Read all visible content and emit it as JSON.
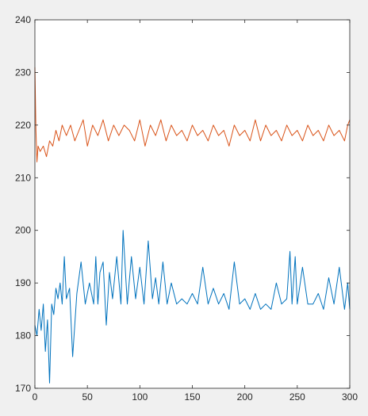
{
  "chart_data": {
    "type": "line",
    "title": "",
    "xlabel": "",
    "ylabel": "",
    "xlim": [
      0,
      300
    ],
    "ylim": [
      170,
      240
    ],
    "x_ticks": [
      0,
      50,
      100,
      150,
      200,
      250,
      300
    ],
    "y_ticks": [
      170,
      180,
      190,
      200,
      210,
      220,
      230,
      240
    ],
    "grid": false,
    "legend": "none",
    "series": [
      {
        "color": "#0072BD",
        "x": [
          0,
          2,
          4,
          6,
          8,
          10,
          12,
          14,
          16,
          18,
          20,
          22,
          24,
          26,
          28,
          30,
          33,
          36,
          40,
          44,
          48,
          52,
          56,
          58,
          60,
          62,
          65,
          68,
          71,
          74,
          78,
          82,
          84,
          88,
          92,
          96,
          100,
          104,
          108,
          112,
          115,
          118,
          122,
          126,
          130,
          135,
          140,
          145,
          150,
          155,
          160,
          165,
          170,
          175,
          180,
          185,
          190,
          195,
          200,
          205,
          210,
          215,
          220,
          225,
          230,
          235,
          240,
          243,
          245,
          248,
          250,
          255,
          260,
          265,
          270,
          275,
          280,
          285,
          290,
          295,
          298,
          300
        ],
        "values": [
          182,
          180,
          185,
          181,
          186,
          177,
          183,
          171,
          186,
          184,
          189,
          187,
          190,
          186,
          195,
          187,
          189,
          176,
          188,
          194,
          186,
          190,
          186,
          195,
          186,
          192,
          194,
          182,
          192,
          187,
          195,
          186,
          200,
          186,
          195,
          187,
          193,
          186,
          198,
          187,
          191,
          186,
          194,
          186,
          190,
          186,
          187,
          186,
          188,
          186,
          193,
          186,
          189,
          186,
          188,
          185,
          194,
          186,
          187,
          185,
          188,
          185,
          186,
          185,
          190,
          186,
          187,
          196,
          186,
          195,
          186,
          193,
          186,
          186,
          188,
          185,
          191,
          186,
          193,
          185,
          190,
          185
        ]
      },
      {
        "color": "#D95319",
        "x": [
          0,
          1,
          2,
          3,
          5,
          8,
          11,
          14,
          17,
          20,
          23,
          26,
          30,
          34,
          38,
          42,
          46,
          50,
          55,
          60,
          65,
          70,
          75,
          80,
          85,
          90,
          95,
          100,
          105,
          110,
          115,
          120,
          125,
          130,
          135,
          140,
          145,
          150,
          155,
          160,
          165,
          170,
          175,
          180,
          185,
          190,
          195,
          200,
          205,
          210,
          215,
          220,
          225,
          230,
          235,
          240,
          245,
          250,
          255,
          260,
          265,
          270,
          275,
          280,
          285,
          290,
          295,
          298,
          300
        ],
        "values": [
          231,
          219,
          213,
          216,
          215,
          216,
          214,
          217,
          216,
          219,
          217,
          220,
          218,
          220,
          217,
          219,
          221,
          216,
          220,
          218,
          221,
          217,
          220,
          218,
          220,
          219,
          217,
          221,
          216,
          220,
          218,
          221,
          217,
          220,
          218,
          219,
          217,
          220,
          218,
          219,
          217,
          220,
          218,
          219,
          216,
          220,
          218,
          219,
          217,
          221,
          217,
          220,
          218,
          219,
          217,
          220,
          218,
          219,
          217,
          220,
          218,
          219,
          217,
          220,
          218,
          219,
          217,
          220,
          221
        ]
      }
    ]
  }
}
